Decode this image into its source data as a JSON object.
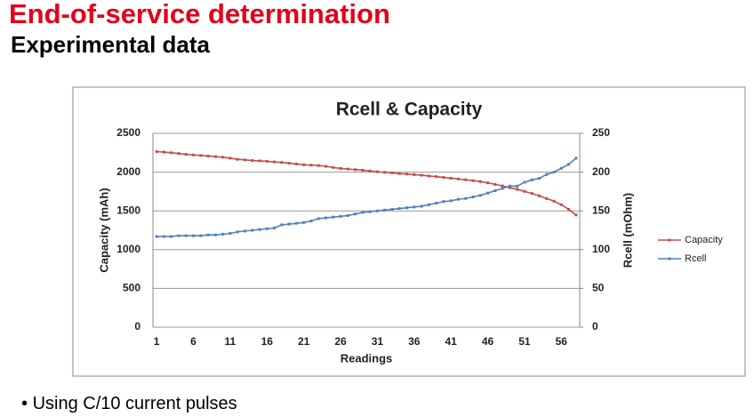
{
  "header": {
    "title": "End-of-service determination",
    "subtitle": "Experimental data"
  },
  "bullets": [
    "Using C/10 current pulses"
  ],
  "chart_data": {
    "type": "line",
    "title": "Rcell & Capacity",
    "xlabel": "Readings",
    "ylabel": "Capacity (mAh)",
    "y2label": "Rcell (mOhm)",
    "categories": [
      1,
      null,
      null,
      null,
      null,
      6,
      null,
      null,
      null,
      null,
      11,
      null,
      null,
      null,
      null,
      16,
      null,
      null,
      null,
      null,
      21,
      null,
      null,
      null,
      null,
      26,
      null,
      null,
      null,
      null,
      31,
      null,
      null,
      null,
      null,
      36,
      null,
      null,
      null,
      null,
      41,
      null,
      null,
      null,
      null,
      46,
      null,
      null,
      null,
      null,
      51,
      null,
      null,
      null,
      null,
      56,
      null,
      null
    ],
    "ylim": [
      0,
      2500
    ],
    "yticks": [
      0,
      500,
      1000,
      1500,
      2000,
      2500
    ],
    "y2lim": [
      0,
      250
    ],
    "y2ticks": [
      0,
      50,
      100,
      150,
      200,
      250
    ],
    "grid": true,
    "legend": "right",
    "series": [
      {
        "name": "Capacity",
        "color": "#c0504d",
        "values": [
          2265,
          2258,
          2250,
          2240,
          2230,
          2222,
          2215,
          2208,
          2200,
          2192,
          2180,
          2165,
          2158,
          2150,
          2145,
          2140,
          2132,
          2125,
          2115,
          2105,
          2095,
          2090,
          2085,
          2075,
          2060,
          2048,
          2040,
          2032,
          2025,
          2015,
          2005,
          1998,
          1990,
          1982,
          1975,
          1968,
          1960,
          1950,
          1942,
          1932,
          1922,
          1912,
          1902,
          1890,
          1878,
          1862,
          1842,
          1822,
          1800,
          1778,
          1752,
          1725,
          1695,
          1660,
          1625,
          1580,
          1520,
          1448
        ]
      },
      {
        "name": "Rcell",
        "color": "#4f81bd",
        "axis": "y2",
        "values": [
          117,
          117,
          117,
          118,
          118,
          118,
          118,
          119,
          119,
          120,
          121,
          123,
          124,
          125,
          126,
          127,
          128,
          132,
          133,
          134,
          135,
          137,
          140,
          141,
          142,
          143,
          144,
          146,
          148,
          149,
          150,
          151,
          152,
          153,
          154,
          155,
          156,
          158,
          160,
          162,
          163,
          165,
          166,
          168,
          170,
          173,
          176,
          179,
          182,
          182,
          187,
          190,
          192,
          197,
          200,
          205,
          210,
          218
        ]
      }
    ]
  }
}
